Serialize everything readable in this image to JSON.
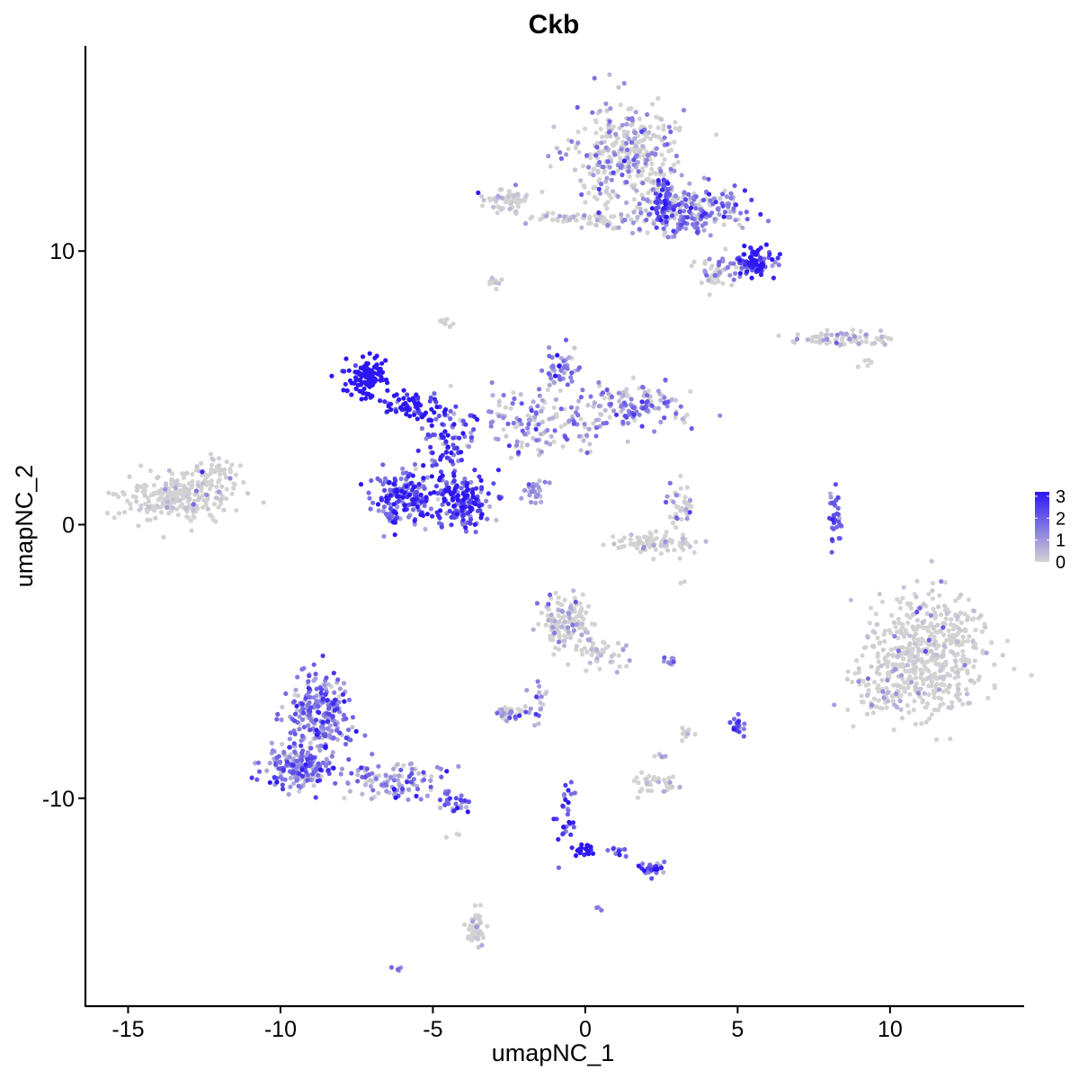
{
  "chart_data": {
    "type": "scatter",
    "title": "Ckb",
    "xlabel": "umapNC_1",
    "ylabel": "umapNC_2",
    "xlim": [
      -16.4,
      14.4
    ],
    "ylim": [
      -17.6,
      17.5
    ],
    "x_ticks": [
      -15,
      -10,
      -5,
      0,
      5,
      10
    ],
    "x_tick_labels": [
      "-15",
      "-10",
      "-5",
      "0",
      "5",
      "10"
    ],
    "y_ticks": [
      -10,
      0,
      10
    ],
    "y_tick_labels": [
      "-10",
      "0",
      "10"
    ],
    "grid": false,
    "legend_position": "right",
    "color_low": "#d3d3d3",
    "color_high": "#2c16f4",
    "point_color_unit": "expression",
    "color_scale": {
      "min": 0,
      "max": 3.2,
      "ticks": [
        0,
        1,
        2,
        3
      ],
      "tick_labels": [
        "0",
        "1",
        "2",
        "3"
      ]
    },
    "clusters": [
      {
        "cx": 1.4,
        "cy": 13.5,
        "sx": 1.2,
        "sy": 1.3,
        "n": 360,
        "expr": 0.35,
        "spread": 0.7,
        "hi": 0.18
      },
      {
        "cx": 3.6,
        "cy": 11.4,
        "sx": 1.1,
        "sy": 0.6,
        "n": 200,
        "expr": 0.8,
        "spread": 0.8,
        "hi": 0.3
      },
      {
        "cx": 5.6,
        "cy": 9.6,
        "sx": 0.45,
        "sy": 0.35,
        "n": 90,
        "expr": 2.0,
        "spread": 0.6,
        "hi": 0.6
      },
      {
        "cx": 4.3,
        "cy": 9.2,
        "sx": 0.6,
        "sy": 0.35,
        "n": 50,
        "expr": 0.4,
        "spread": 0.7,
        "hi": 0.15
      },
      {
        "cx": 2.6,
        "cy": 11.8,
        "sx": 0.25,
        "sy": 0.6,
        "n": 60,
        "expr": 1.4,
        "spread": 0.7,
        "hi": 0.4
      },
      {
        "cx": -2.6,
        "cy": 11.9,
        "sx": 0.5,
        "sy": 0.25,
        "n": 70,
        "expr": 0.05,
        "spread": 0.3,
        "hi": 0.03
      },
      {
        "cx": -1.0,
        "cy": 11.2,
        "sx": 0.8,
        "sy": 0.15,
        "n": 30,
        "expr": 0.1,
        "spread": 0.3,
        "hi": 0.05
      },
      {
        "cx": 0.7,
        "cy": 11.1,
        "sx": 0.8,
        "sy": 0.25,
        "n": 50,
        "expr": 0.15,
        "spread": 0.5,
        "hi": 0.05
      },
      {
        "cx": -3.0,
        "cy": 8.9,
        "sx": 0.2,
        "sy": 0.12,
        "n": 14,
        "expr": 0.05,
        "spread": 0.2,
        "hi": 0.0
      },
      {
        "cx": -4.6,
        "cy": 7.4,
        "sx": 0.15,
        "sy": 0.15,
        "n": 10,
        "expr": 0.05,
        "spread": 0.2,
        "hi": 0.0
      },
      {
        "cx": 8.4,
        "cy": 6.8,
        "sx": 1.2,
        "sy": 0.2,
        "n": 80,
        "expr": 0.15,
        "spread": 0.5,
        "hi": 0.08
      },
      {
        "cx": 9.2,
        "cy": 5.9,
        "sx": 0.2,
        "sy": 0.15,
        "n": 6,
        "expr": 0.05,
        "spread": 0.2,
        "hi": 0.0
      },
      {
        "cx": -13.4,
        "cy": 1.0,
        "sx": 1.2,
        "sy": 0.6,
        "n": 260,
        "expr": 0.03,
        "spread": 0.2,
        "hi": 0.02
      },
      {
        "cx": -12.1,
        "cy": 2.0,
        "sx": 0.5,
        "sy": 0.4,
        "n": 40,
        "expr": 0.05,
        "spread": 0.2,
        "hi": 0.02
      },
      {
        "cx": -7.2,
        "cy": 5.4,
        "sx": 0.45,
        "sy": 0.45,
        "n": 110,
        "expr": 3.0,
        "spread": 0.4,
        "hi": 0.7
      },
      {
        "cx": -5.6,
        "cy": 4.3,
        "sx": 0.7,
        "sy": 0.35,
        "n": 70,
        "expr": 2.3,
        "spread": 0.7,
        "hi": 0.4
      },
      {
        "cx": -4.5,
        "cy": 3.0,
        "sx": 0.6,
        "sy": 0.8,
        "n": 80,
        "expr": 1.7,
        "spread": 0.8,
        "hi": 0.3
      },
      {
        "cx": -6.0,
        "cy": 1.0,
        "sx": 0.65,
        "sy": 0.65,
        "n": 170,
        "expr": 1.8,
        "spread": 0.7,
        "hi": 0.25
      },
      {
        "cx": -4.0,
        "cy": 0.9,
        "sx": 0.6,
        "sy": 0.65,
        "n": 170,
        "expr": 2.0,
        "spread": 0.7,
        "hi": 0.3
      },
      {
        "cx": -1.5,
        "cy": 3.8,
        "sx": 1.5,
        "sy": 0.9,
        "n": 140,
        "expr": 0.5,
        "spread": 0.8,
        "hi": 0.15
      },
      {
        "cx": -0.8,
        "cy": 5.6,
        "sx": 0.35,
        "sy": 0.6,
        "n": 50,
        "expr": 0.8,
        "spread": 0.7,
        "hi": 0.3
      },
      {
        "cx": 1.6,
        "cy": 4.3,
        "sx": 1.2,
        "sy": 0.55,
        "n": 130,
        "expr": 0.7,
        "spread": 0.8,
        "hi": 0.2
      },
      {
        "cx": 2.3,
        "cy": -0.7,
        "sx": 0.9,
        "sy": 0.25,
        "n": 90,
        "expr": 0.05,
        "spread": 0.3,
        "hi": 0.03
      },
      {
        "cx": 3.1,
        "cy": 0.6,
        "sx": 0.3,
        "sy": 0.5,
        "n": 40,
        "expr": 0.3,
        "spread": 0.6,
        "hi": 0.1
      },
      {
        "cx": -1.7,
        "cy": 1.2,
        "sx": 0.35,
        "sy": 0.3,
        "n": 25,
        "expr": 0.7,
        "spread": 0.6,
        "hi": 0.1
      },
      {
        "cx": 8.2,
        "cy": 0.3,
        "sx": 0.15,
        "sy": 0.7,
        "n": 35,
        "expr": 1.3,
        "spread": 0.8,
        "hi": 0.2
      },
      {
        "cx": 11.2,
        "cy": -4.8,
        "sx": 1.3,
        "sy": 1.55,
        "n": 520,
        "expr": 0.04,
        "spread": 0.2,
        "hi": 0.03
      },
      {
        "cx": 9.6,
        "cy": -6.1,
        "sx": 0.6,
        "sy": 0.7,
        "n": 60,
        "expr": 0.2,
        "spread": 0.5,
        "hi": 0.1
      },
      {
        "cx": -8.7,
        "cy": -7.0,
        "sx": 0.75,
        "sy": 1.0,
        "n": 240,
        "expr": 1.2,
        "spread": 0.8,
        "hi": 0.1
      },
      {
        "cx": -9.4,
        "cy": -8.9,
        "sx": 0.75,
        "sy": 0.55,
        "n": 180,
        "expr": 1.2,
        "spread": 0.8,
        "hi": 0.1
      },
      {
        "cx": -6.3,
        "cy": -9.3,
        "sx": 1.1,
        "sy": 0.45,
        "n": 110,
        "expr": 0.9,
        "spread": 0.8,
        "hi": 0.1
      },
      {
        "cx": -4.3,
        "cy": -10.1,
        "sx": 0.4,
        "sy": 0.25,
        "n": 30,
        "expr": 1.2,
        "spread": 0.6,
        "hi": 0.1
      },
      {
        "cx": -0.6,
        "cy": -3.6,
        "sx": 0.55,
        "sy": 0.65,
        "n": 140,
        "expr": 0.2,
        "spread": 0.5,
        "hi": 0.08
      },
      {
        "cx": 0.6,
        "cy": -4.8,
        "sx": 0.6,
        "sy": 0.35,
        "n": 40,
        "expr": 0.15,
        "spread": 0.4,
        "hi": 0.05
      },
      {
        "cx": -1.5,
        "cy": -6.5,
        "sx": 0.35,
        "sy": 0.5,
        "n": 20,
        "expr": 0.6,
        "spread": 0.6,
        "hi": 0.1
      },
      {
        "cx": -2.5,
        "cy": -6.9,
        "sx": 0.35,
        "sy": 0.15,
        "n": 40,
        "expr": 0.4,
        "spread": 0.5,
        "hi": 0.1
      },
      {
        "cx": 2.8,
        "cy": -5.0,
        "sx": 0.2,
        "sy": 0.1,
        "n": 10,
        "expr": 1.2,
        "spread": 0.5,
        "hi": 0.1
      },
      {
        "cx": 5.0,
        "cy": -7.4,
        "sx": 0.12,
        "sy": 0.25,
        "n": 20,
        "expr": 2.0,
        "spread": 0.5,
        "hi": 0.2
      },
      {
        "cx": 3.3,
        "cy": -7.6,
        "sx": 0.15,
        "sy": 0.2,
        "n": 10,
        "expr": 0.2,
        "spread": 0.4,
        "hi": 0.05
      },
      {
        "cx": 2.2,
        "cy": -9.5,
        "sx": 0.6,
        "sy": 0.3,
        "n": 40,
        "expr": 0.1,
        "spread": 0.4,
        "hi": 0.05
      },
      {
        "cx": 2.5,
        "cy": -8.5,
        "sx": 0.1,
        "sy": 0.15,
        "n": 5,
        "expr": 0.3,
        "spread": 0.4,
        "hi": 0.0
      },
      {
        "cx": -0.6,
        "cy": -10.6,
        "sx": 0.2,
        "sy": 0.8,
        "n": 30,
        "expr": 2.0,
        "spread": 0.6,
        "hi": 0.3
      },
      {
        "cx": 0.0,
        "cy": -11.9,
        "sx": 0.3,
        "sy": 0.15,
        "n": 20,
        "expr": 2.9,
        "spread": 0.4,
        "hi": 0.6
      },
      {
        "cx": 2.2,
        "cy": -12.6,
        "sx": 0.35,
        "sy": 0.15,
        "n": 30,
        "expr": 1.6,
        "spread": 0.6,
        "hi": 0.2
      },
      {
        "cx": 1.0,
        "cy": -11.9,
        "sx": 0.3,
        "sy": 0.1,
        "n": 10,
        "expr": 1.8,
        "spread": 0.6,
        "hi": 0.2
      },
      {
        "cx": -3.6,
        "cy": -14.8,
        "sx": 0.2,
        "sy": 0.5,
        "n": 50,
        "expr": 0.1,
        "spread": 0.3,
        "hi": 0.05
      },
      {
        "cx": -6.2,
        "cy": -16.2,
        "sx": 0.1,
        "sy": 0.08,
        "n": 4,
        "expr": 1.5,
        "spread": 0.4,
        "hi": 0.0
      },
      {
        "cx": 0.5,
        "cy": -14.0,
        "sx": 0.08,
        "sy": 0.08,
        "n": 3,
        "expr": 1.2,
        "spread": 0.4,
        "hi": 0.0
      },
      {
        "cx": -4.2,
        "cy": -11.4,
        "sx": 0.2,
        "sy": 0.08,
        "n": 3,
        "expr": 0.05,
        "spread": 0.2,
        "hi": 0.0
      },
      {
        "cx": 3.2,
        "cy": -2.1,
        "sx": 0.1,
        "sy": 0.1,
        "n": 2,
        "expr": 0.05,
        "spread": 0.2,
        "hi": 0.0
      }
    ]
  }
}
